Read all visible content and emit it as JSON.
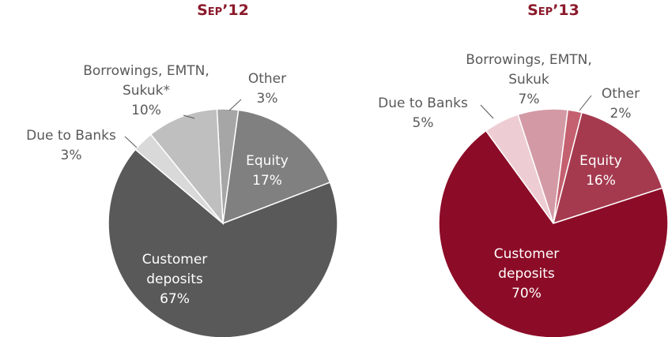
{
  "chart_data": [
    {
      "type": "pie",
      "title": "Sep’12",
      "categories": [
        "Other",
        "Equity",
        "Customer deposits",
        "Due to Banks",
        "Borrowings, EMTN, Sukuk*"
      ],
      "values": [
        3,
        17,
        67,
        3,
        10
      ],
      "value_labels": [
        "3%",
        "17%",
        "67%",
        "3%",
        "10%"
      ],
      "colors": [
        "#a6a6a6",
        "#808080",
        "#595959",
        "#d9d9d9",
        "#bfbfbf"
      ]
    },
    {
      "type": "pie",
      "title": "Sep’13",
      "categories": [
        "Other",
        "Equity",
        "Customer deposits",
        "Due to Banks",
        "Borrowings, EMTN, Sukuk"
      ],
      "values": [
        2,
        16,
        70,
        5,
        7
      ],
      "value_labels": [
        "2%",
        "16%",
        "70%",
        "5%",
        "7%"
      ],
      "colors": [
        "#c4606f",
        "#a53a4f",
        "#8c0c27",
        "#edcdd3",
        "#d39aa6"
      ]
    }
  ]
}
